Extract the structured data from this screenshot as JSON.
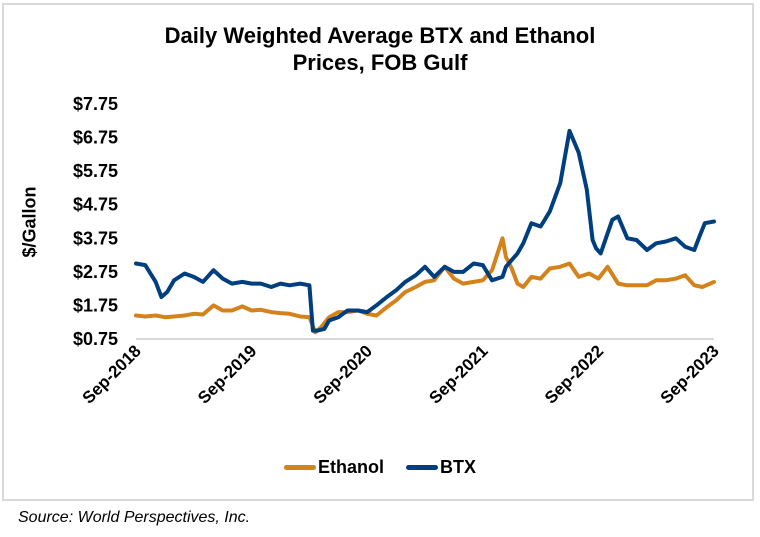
{
  "chart_data": {
    "type": "line",
    "title": [
      "Daily Weighted Average BTX and Ethanol",
      "Prices, FOB Gulf"
    ],
    "xlabel": "",
    "ylabel": "$/Gallon",
    "x_ticks": [
      "Sep-2018",
      "Sep-2019",
      "Sep-2020",
      "Sep-2021",
      "Sep-2022",
      "Sep-2023"
    ],
    "x_range_years_since_sep2018": [
      0,
      5
    ],
    "y_ticks": [
      "$0.75",
      "$1.75",
      "$2.75",
      "$3.75",
      "$4.75",
      "$5.75",
      "$6.75",
      "$7.75"
    ],
    "ylim": [
      0.75,
      7.75
    ],
    "grid": false,
    "legend_position": "bottom",
    "series": [
      {
        "name": "Ethanol",
        "color": "#d4821c",
        "x": [
          0,
          0.08,
          0.17,
          0.25,
          0.33,
          0.42,
          0.5,
          0.58,
          0.67,
          0.75,
          0.83,
          0.92,
          1.0,
          1.08,
          1.17,
          1.25,
          1.33,
          1.42,
          1.5,
          1.55,
          1.6,
          1.67,
          1.75,
          1.83,
          1.92,
          2.0,
          2.08,
          2.17,
          2.25,
          2.33,
          2.42,
          2.5,
          2.58,
          2.67,
          2.75,
          2.83,
          2.92,
          3.0,
          3.08,
          3.17,
          3.2,
          3.25,
          3.3,
          3.35,
          3.42,
          3.5,
          3.58,
          3.67,
          3.75,
          3.83,
          3.92,
          4.0,
          4.08,
          4.17,
          4.25,
          4.33,
          4.42,
          4.5,
          4.58,
          4.67,
          4.75,
          4.83,
          4.9,
          5.0
        ],
        "values": [
          1.45,
          1.42,
          1.45,
          1.4,
          1.42,
          1.45,
          1.5,
          1.48,
          1.75,
          1.6,
          1.6,
          1.72,
          1.6,
          1.62,
          1.55,
          1.52,
          1.5,
          1.42,
          1.4,
          0.95,
          1.1,
          1.4,
          1.55,
          1.55,
          1.6,
          1.5,
          1.45,
          1.7,
          1.9,
          2.15,
          2.3,
          2.45,
          2.5,
          2.9,
          2.55,
          2.4,
          2.45,
          2.5,
          2.8,
          3.75,
          3.2,
          2.85,
          2.4,
          2.3,
          2.6,
          2.55,
          2.85,
          2.9,
          3.0,
          2.6,
          2.7,
          2.55,
          2.9,
          2.4,
          2.35,
          2.35,
          2.35,
          2.5,
          2.5,
          2.55,
          2.65,
          2.35,
          2.3,
          2.45
        ]
      },
      {
        "name": "BTX",
        "color": "#003f7f",
        "x": [
          0,
          0.08,
          0.17,
          0.22,
          0.27,
          0.33,
          0.42,
          0.5,
          0.58,
          0.67,
          0.75,
          0.83,
          0.92,
          1.0,
          1.08,
          1.17,
          1.25,
          1.33,
          1.42,
          1.5,
          1.53,
          1.57,
          1.63,
          1.67,
          1.75,
          1.83,
          1.92,
          2.0,
          2.08,
          2.17,
          2.25,
          2.33,
          2.42,
          2.5,
          2.58,
          2.67,
          2.75,
          2.83,
          2.92,
          3.0,
          3.08,
          3.17,
          3.2,
          3.25,
          3.3,
          3.35,
          3.42,
          3.5,
          3.58,
          3.67,
          3.75,
          3.83,
          3.9,
          3.95,
          3.98,
          4.02,
          4.08,
          4.12,
          4.17,
          4.25,
          4.33,
          4.42,
          4.5,
          4.58,
          4.67,
          4.75,
          4.83,
          4.88,
          4.92,
          5.0
        ],
        "values": [
          3.0,
          2.95,
          2.45,
          2.0,
          2.15,
          2.5,
          2.7,
          2.6,
          2.45,
          2.8,
          2.55,
          2.4,
          2.45,
          2.4,
          2.4,
          2.3,
          2.4,
          2.35,
          2.4,
          2.35,
          1.0,
          1.0,
          1.05,
          1.3,
          1.4,
          1.6,
          1.6,
          1.55,
          1.75,
          2.0,
          2.2,
          2.45,
          2.65,
          2.9,
          2.6,
          2.9,
          2.75,
          2.75,
          3.0,
          2.95,
          2.5,
          2.6,
          2.9,
          3.1,
          3.3,
          3.6,
          4.2,
          4.1,
          4.55,
          5.4,
          6.95,
          6.3,
          5.2,
          3.7,
          3.45,
          3.3,
          3.9,
          4.3,
          4.4,
          3.75,
          3.7,
          3.4,
          3.6,
          3.65,
          3.75,
          3.5,
          3.4,
          3.85,
          4.2,
          4.25
        ]
      }
    ]
  },
  "source": "Source: World Perspectives, Inc."
}
